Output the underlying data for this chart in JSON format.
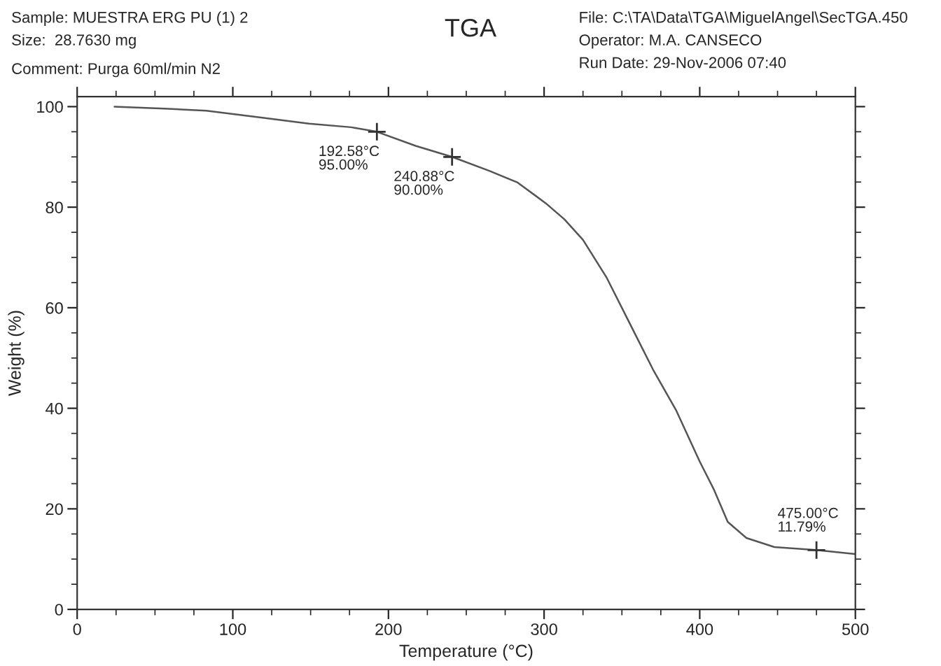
{
  "chart_data": {
    "type": "line",
    "title": "TGA",
    "xlabel": "Temperature (°C)",
    "ylabel": "Weight (%)",
    "x": [
      24,
      56,
      83,
      119,
      149,
      176,
      192.58,
      217.5,
      240.88,
      265,
      283,
      301,
      313,
      325,
      340,
      355,
      370,
      385,
      400,
      409,
      418,
      430,
      448,
      475,
      500
    ],
    "series": [
      {
        "color": "#555555",
        "values": [
          100,
          99.6,
          99.2,
          97.8,
          96.6,
          95.9,
          95,
          92.2,
          90,
          87.2,
          84.9,
          80.8,
          77.6,
          73.5,
          66.1,
          56.9,
          47.7,
          39.5,
          29.4,
          23.9,
          17.4,
          14.2,
          12.4,
          11.8,
          11
        ]
      }
    ],
    "xlim": [
      0,
      500
    ],
    "ylim": [
      0,
      102
    ],
    "xticks": [
      0,
      {
        "value": 25,
        "label": null
      },
      {
        "value": 50,
        "label": null
      },
      {
        "value": 75,
        "label": null
      },
      100,
      {
        "value": 125,
        "label": null
      },
      {
        "value": 150,
        "label": null
      },
      {
        "value": 175,
        "label": null
      },
      200,
      {
        "value": 225,
        "label": null
      },
      {
        "value": 250,
        "label": null
      },
      {
        "value": 275,
        "label": null
      },
      300,
      {
        "value": 325,
        "label": null
      },
      {
        "value": 350,
        "label": null
      },
      {
        "value": 375,
        "label": null
      },
      400,
      {
        "value": 425,
        "label": null
      },
      {
        "value": 450,
        "label": null
      },
      {
        "value": 475,
        "label": null
      },
      500
    ],
    "yticks": [
      0,
      {
        "value": 5,
        "label": null
      },
      {
        "value": 10,
        "label": null
      },
      {
        "value": 15,
        "label": null
      },
      20,
      {
        "value": 25,
        "label": null
      },
      {
        "value": 30,
        "label": null
      },
      {
        "value": 35,
        "label": null
      },
      40,
      {
        "value": 45,
        "label": null
      },
      {
        "value": 50,
        "label": null
      },
      {
        "value": 55,
        "label": null
      },
      60,
      {
        "value": 65,
        "label": null
      },
      {
        "value": 70,
        "label": null
      },
      {
        "value": 75,
        "label": null
      },
      80,
      {
        "value": 85,
        "label": null
      },
      {
        "value": 90,
        "label": null
      },
      {
        "value": 95,
        "label": null
      },
      100
    ],
    "grid": false,
    "legend": false,
    "marker": "none",
    "line_style": "solid",
    "annotations": [
      "Sample: MUESTRA ERG PU (1) 2",
      "Size:  28.7630 mg",
      "Comment: Purga 60ml/min N2",
      "File: C:\\TA\\Data\\TGA\\MiguelAngel\\SecTGA.450",
      "Operator: M.A. CANSECO",
      "Run Date: 29-Nov-2006 07:40",
      {
        "text": "192.58°C\n95.00%",
        "x": 192.58,
        "y": 95
      },
      {
        "text": "240.88°C\n90.00%",
        "x": 240.88,
        "y": 90
      },
      {
        "text": "475.00°C\n11.79%",
        "x": 475,
        "y": 11.79
      }
    ]
  }
}
